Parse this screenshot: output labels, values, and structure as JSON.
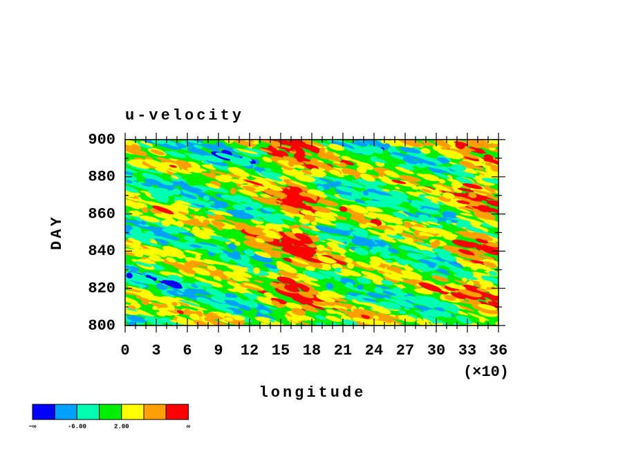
{
  "chart_data": {
    "type": "contour",
    "title": "u-velocity",
    "x_label": "longitude",
    "x_multiplier": "(×10)",
    "y_label": "DAY",
    "xlim": [
      0,
      36
    ],
    "xticks": [
      0,
      3,
      6,
      9,
      12,
      15,
      18,
      21,
      24,
      27,
      30,
      33,
      36
    ],
    "ylim": [
      800,
      900
    ],
    "yticks": [
      800,
      820,
      840,
      860,
      880,
      900
    ],
    "colorbar": {
      "colors": [
        "#0000ff",
        "#00a0ff",
        "#00ffb0",
        "#00f000",
        "#ffff00",
        "#ffa000",
        "#ff0000"
      ],
      "labels": [
        "−∞",
        "-6.00",
        "2.00",
        "∞"
      ]
    }
  }
}
